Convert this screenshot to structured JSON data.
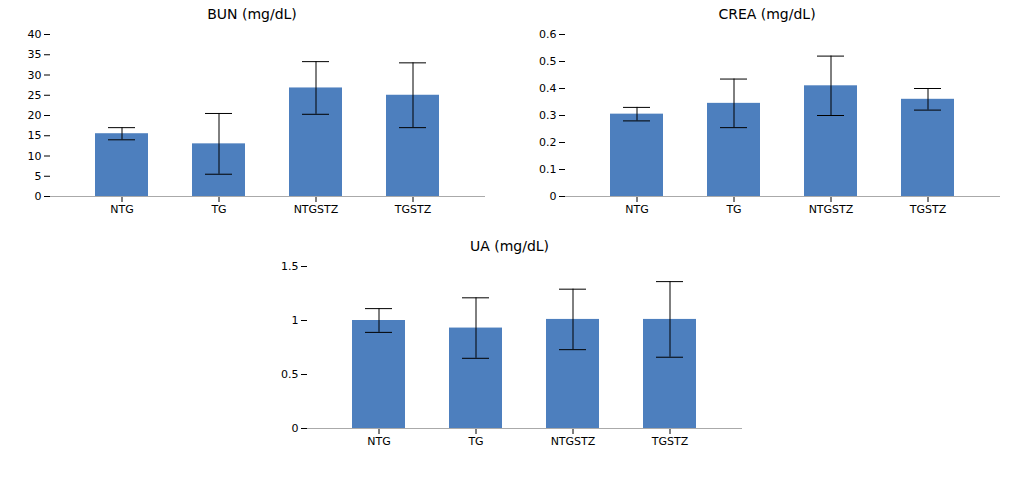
{
  "chart_data": [
    {
      "type": "bar",
      "title": "BUN (mg/dL)",
      "categories": [
        "NTG",
        "TG",
        "NTGSTZ",
        "TGSTZ"
      ],
      "values": [
        15.5,
        13.0,
        26.8,
        25.0
      ],
      "errors": [
        1.5,
        7.5,
        6.5,
        8.0
      ],
      "color": "#4d7fbe",
      "ylim": [
        0,
        40
      ],
      "yticks": [
        0,
        5,
        10,
        15,
        20,
        25,
        30,
        35,
        40
      ],
      "grid": false
    },
    {
      "type": "bar",
      "title": "CREA (mg/dL)",
      "categories": [
        "NTG",
        "TG",
        "NTGSTZ",
        "TGSTZ"
      ],
      "values": [
        0.305,
        0.345,
        0.41,
        0.36
      ],
      "errors": [
        0.025,
        0.09,
        0.11,
        0.04
      ],
      "color": "#4d7fbe",
      "ylim": [
        0,
        0.6
      ],
      "yticks": [
        0,
        0.1,
        0.2,
        0.3,
        0.4,
        0.5,
        0.6
      ],
      "grid": false
    },
    {
      "type": "bar",
      "title": "UA (mg/dL)",
      "categories": [
        "NTG",
        "TG",
        "NTGSTZ",
        "TGSTZ"
      ],
      "values": [
        1.0,
        0.93,
        1.01,
        1.01
      ],
      "errors": [
        0.11,
        0.28,
        0.28,
        0.35
      ],
      "color": "#4d7fbe",
      "ylim": [
        0,
        1.5
      ],
      "yticks": [
        0,
        0.5,
        1.0,
        1.5
      ],
      "grid": false
    }
  ]
}
